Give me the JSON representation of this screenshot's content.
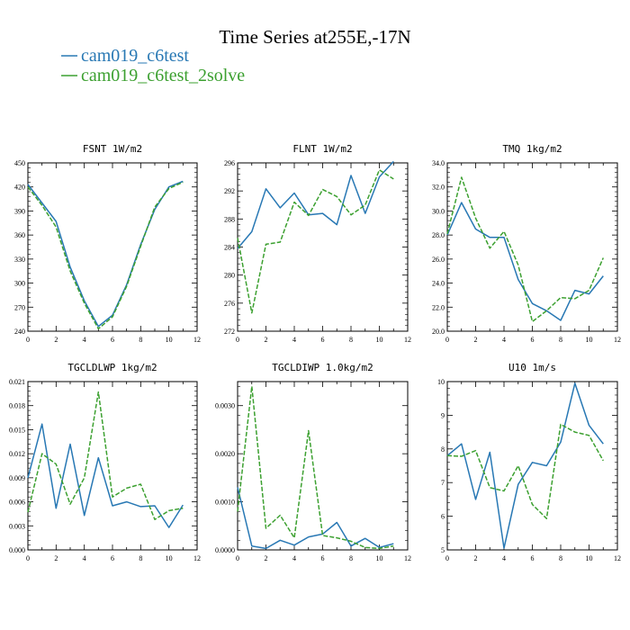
{
  "figure": {
    "title": "Time Series at255E,-17N"
  },
  "legend": [
    {
      "name": "cam019_c6test",
      "color": "#2878b4",
      "dash": "solid"
    },
    {
      "name": "cam019_c6test_2solve",
      "color": "#3ca030",
      "dash": "dashed"
    }
  ],
  "chart_data": [
    {
      "type": "line",
      "title": "FSNT  1W/m2",
      "xlim": [
        0,
        12
      ],
      "ylim": [
        240,
        450
      ],
      "x_ticks": [
        "0",
        "2",
        "4",
        "6",
        "8",
        "10",
        "12"
      ],
      "y_ticks": [
        "240",
        "270",
        "300",
        "330",
        "360",
        "390",
        "420",
        "450"
      ],
      "x": [
        0,
        1,
        2,
        3,
        4,
        5,
        6,
        7,
        8,
        9,
        10,
        11
      ],
      "series": [
        {
          "name": "cam019_c6test",
          "values": [
            423,
            400,
            377,
            320,
            278,
            246,
            260,
            298,
            348,
            392,
            420,
            427
          ]
        },
        {
          "name": "cam019_c6test_2solve",
          "values": [
            420,
            397,
            370,
            315,
            275,
            243,
            258,
            296,
            346,
            395,
            418,
            426
          ]
        }
      ]
    },
    {
      "type": "line",
      "title": "FLNT  1W/m2",
      "xlim": [
        0,
        12
      ],
      "ylim": [
        272,
        296
      ],
      "x_ticks": [
        "0",
        "2",
        "4",
        "6",
        "8",
        "10",
        "12"
      ],
      "y_ticks": [
        "272",
        "276",
        "280",
        "284",
        "288",
        "292",
        "296"
      ],
      "x": [
        0,
        1,
        2,
        3,
        4,
        5,
        6,
        7,
        8,
        9,
        10,
        11
      ],
      "series": [
        {
          "name": "cam019_c6test",
          "values": [
            283.8,
            286.2,
            292.3,
            289.6,
            291.7,
            288.6,
            288.8,
            287.2,
            294.2,
            288.8,
            294.0,
            296.2
          ]
        },
        {
          "name": "cam019_c6test_2solve",
          "values": [
            285.3,
            274.6,
            284.4,
            284.7,
            290.4,
            288.5,
            292.2,
            291.2,
            288.6,
            290.0,
            295.0,
            293.7
          ]
        }
      ]
    },
    {
      "type": "line",
      "title": "TMQ  1kg/m2",
      "xlim": [
        0,
        12
      ],
      "ylim": [
        20,
        34
      ],
      "x_ticks": [
        "0",
        "2",
        "4",
        "6",
        "8",
        "10",
        "12"
      ],
      "y_ticks": [
        "20.0",
        "22.0",
        "24.0",
        "26.0",
        "28.0",
        "30.0",
        "32.0",
        "34.0"
      ],
      "x": [
        0,
        1,
        2,
        3,
        4,
        5,
        6,
        7,
        8,
        9,
        10,
        11
      ],
      "series": [
        {
          "name": "cam019_c6test",
          "values": [
            28.0,
            30.7,
            28.5,
            27.8,
            27.8,
            24.3,
            22.3,
            21.7,
            20.9,
            23.4,
            23.1,
            24.6
          ]
        },
        {
          "name": "cam019_c6test_2solve",
          "values": [
            28.1,
            32.8,
            29.4,
            26.9,
            28.3,
            25.5,
            20.8,
            21.7,
            22.8,
            22.7,
            23.4,
            26.1
          ]
        }
      ]
    },
    {
      "type": "line",
      "title": "TGCLDLWP  1kg/m2",
      "xlim": [
        0,
        12
      ],
      "ylim": [
        0,
        0.021
      ],
      "x_ticks": [
        "0",
        "2",
        "4",
        "6",
        "8",
        "10",
        "12"
      ],
      "y_ticks": [
        "0.000",
        "0.003",
        "0.006",
        "0.009",
        "0.012",
        "0.015",
        "0.018",
        "0.021"
      ],
      "x": [
        0,
        1,
        2,
        3,
        4,
        5,
        6,
        7,
        8,
        9,
        10,
        11
      ],
      "series": [
        {
          "name": "cam019_c6test",
          "values": [
            0.009,
            0.0157,
            0.0052,
            0.0132,
            0.0043,
            0.0115,
            0.0055,
            0.006,
            0.0054,
            0.0055,
            0.0028,
            0.0056
          ]
        },
        {
          "name": "cam019_c6test_2solve",
          "values": [
            0.0047,
            0.012,
            0.0107,
            0.0057,
            0.009,
            0.0197,
            0.0066,
            0.0077,
            0.0082,
            0.0038,
            0.0049,
            0.0052
          ]
        }
      ]
    },
    {
      "type": "line",
      "title": "TGCLDIWP  1.0kg/m2",
      "xlim": [
        0,
        12
      ],
      "ylim": [
        0,
        0.0035
      ],
      "x_ticks": [
        "0",
        "2",
        "4",
        "6",
        "8",
        "10",
        "12"
      ],
      "y_ticks": [
        "0.0000",
        "0.0010",
        "0.0020",
        "0.0030"
      ],
      "x": [
        0,
        1,
        2,
        3,
        4,
        5,
        6,
        7,
        8,
        9,
        10,
        11
      ],
      "series": [
        {
          "name": "cam019_c6test",
          "values": [
            0.0013,
            8e-05,
            3e-05,
            0.0002,
            0.0001,
            0.00027,
            0.00033,
            0.00057,
            8e-05,
            0.00024,
            5e-05,
            0.00013
          ]
        },
        {
          "name": "cam019_c6test_2solve",
          "values": [
            0.0008,
            0.0034,
            0.00045,
            0.00072,
            0.00025,
            0.00248,
            0.0003,
            0.00025,
            0.00018,
            5e-05,
            3e-05,
            8e-05
          ]
        }
      ]
    },
    {
      "type": "line",
      "title": "U10  1m/s",
      "xlim": [
        0,
        12
      ],
      "ylim": [
        5,
        10
      ],
      "x_ticks": [
        "0",
        "2",
        "4",
        "6",
        "8",
        "10",
        "12"
      ],
      "y_ticks": [
        "5",
        "6",
        "7",
        "8",
        "9",
        "10"
      ],
      "x": [
        0,
        1,
        2,
        3,
        4,
        5,
        6,
        7,
        8,
        9,
        10,
        11
      ],
      "series": [
        {
          "name": "cam019_c6test",
          "values": [
            7.8,
            8.15,
            6.5,
            7.9,
            5.05,
            6.95,
            7.6,
            7.5,
            8.2,
            9.95,
            8.7,
            8.15
          ]
        },
        {
          "name": "cam019_c6test_2solve",
          "values": [
            7.8,
            7.78,
            7.95,
            6.85,
            6.75,
            7.5,
            6.35,
            5.93,
            8.73,
            8.5,
            8.4,
            7.65
          ]
        }
      ]
    }
  ]
}
